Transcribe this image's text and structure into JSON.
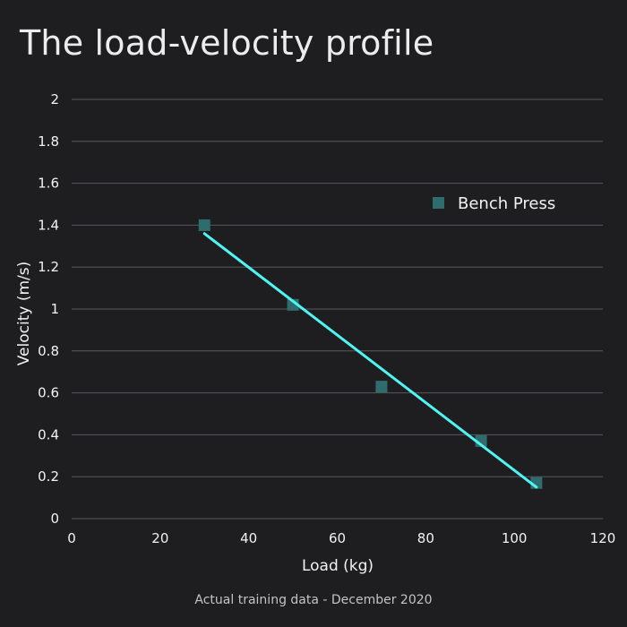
{
  "chart_data": {
    "type": "scatter",
    "title": "The load-velocity profile",
    "subtitle": "",
    "xlabel": "Load (kg)",
    "ylabel": "Velocity (m/s)",
    "xlim": [
      0,
      120
    ],
    "ylim": [
      0,
      2
    ],
    "xticks": [
      "0",
      "20",
      "40",
      "60",
      "80",
      "100",
      "120"
    ],
    "yticks": [
      "0",
      "0.2",
      "0.4",
      "0.6",
      "0.8",
      "1",
      "1.2",
      "1.4",
      "1.6",
      "1.8",
      "2"
    ],
    "grid": "horizontal",
    "legend_position": "top-right",
    "series": [
      {
        "name": "Bench Press",
        "color": "#2f6c6e",
        "marker": "square",
        "x": [
          30,
          50,
          70,
          92.5,
          105
        ],
        "y": [
          1.4,
          1.02,
          0.63,
          0.37,
          0.17
        ]
      }
    ],
    "trendline": {
      "color": "#4ff5f3",
      "x": [
        30,
        105
      ],
      "y": [
        1.36,
        0.15
      ]
    },
    "caption": "Actual training data - December 2020"
  }
}
